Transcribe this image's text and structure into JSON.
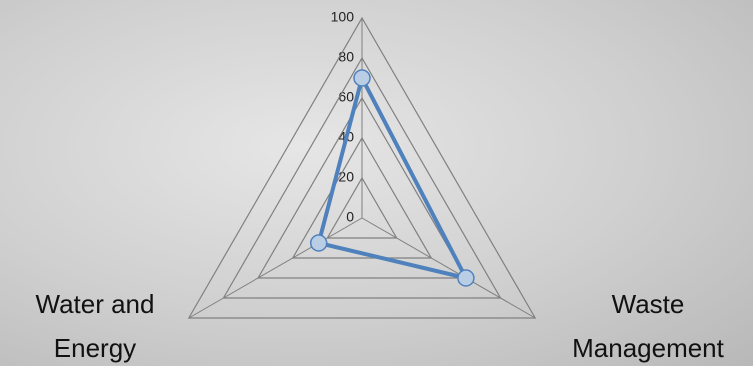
{
  "chart_data": {
    "type": "radar",
    "categories": [
      null,
      "Waste Management",
      "Water and Energy"
    ],
    "series": [
      {
        "name": null,
        "color": "#4f81bd",
        "values": [
          70,
          60,
          25
        ]
      }
    ],
    "ylim": [
      0,
      100
    ],
    "yticks": [
      0,
      20,
      40,
      60,
      80,
      100
    ],
    "grid": true
  }
}
